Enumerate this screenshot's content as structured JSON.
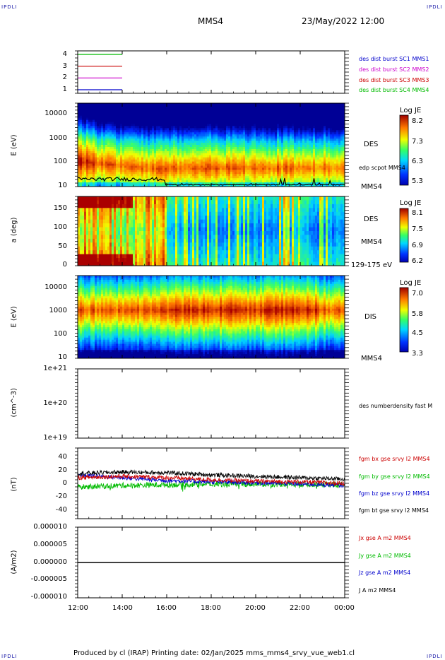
{
  "header": {
    "corner_tl": "IPDLI",
    "corner_tr": "IPDLI",
    "corner_bl": "IPDLI",
    "corner_br": "IPDLI",
    "title": "MMS4",
    "datetime": "23/May/2022 12:00"
  },
  "footer": {
    "text": "Produced by cl (IRAP)   Printing date: 02/Jan/2025   mms_mms4_srvy_vue_web1.cl"
  },
  "x_axis": {
    "ticks": [
      "12:00",
      "14:00",
      "16:00",
      "18:00",
      "20:00",
      "22:00",
      "00:00"
    ]
  },
  "panels": {
    "p1": {
      "ticks": [
        "4",
        "3",
        "2",
        "1"
      ],
      "legend": [
        {
          "text": "des dist burst SC1 MMS1",
          "color": "#0000cc"
        },
        {
          "text": "des dist burst SC2 MMS2",
          "color": "#cc00cc"
        },
        {
          "text": "des dist burst SC3 MMS3",
          "color": "#cc0000"
        },
        {
          "text": "des dist burst SC4 MMS4",
          "color": "#00bb00"
        }
      ],
      "lines": [
        {
          "level": 4,
          "color": "#00bb00"
        },
        {
          "level": 3,
          "color": "#cc0000"
        },
        {
          "level": 2,
          "color": "#cc00cc"
        },
        {
          "level": 1,
          "color": "#0000cc"
        }
      ]
    },
    "p2": {
      "ylabel": "E (eV)",
      "ticks": [
        "10000",
        "1000",
        "100",
        "10"
      ],
      "right_label": "DES",
      "overlay_label": "edp scpot MMS4",
      "bottom_label": "MMS4",
      "cb_title": "Log JE",
      "cb_ticks": [
        "8.2",
        "7.3",
        "6.3",
        "5.3"
      ]
    },
    "p3": {
      "ylabel": "a (deg)",
      "ticks": [
        "150",
        "100",
        "50",
        "0"
      ],
      "right_label": "DES",
      "sub_label": "MMS4",
      "bottom_label": "129-175 eV",
      "cb_title": "Log JE",
      "cb_ticks": [
        "8.1",
        "7.5",
        "6.9",
        "6.2"
      ]
    },
    "p4": {
      "ylabel": "E (eV)",
      "ticks": [
        "10000",
        "1000",
        "100",
        "10"
      ],
      "right_label": "DIS",
      "bottom_label": "MMS4",
      "cb_title": "Log JE",
      "cb_ticks": [
        "7.0",
        "5.8",
        "4.5",
        "3.3"
      ]
    },
    "p5": {
      "ylabel": "(cm^-3)",
      "ticks": [
        "1e+21",
        "1e+20",
        "1e+19"
      ],
      "legend": "des numberdensity fast M"
    },
    "p6": {
      "ylabel": "(nT)",
      "ticks": [
        "40",
        "20",
        "0",
        "-20",
        "-40"
      ],
      "legend": [
        {
          "text": "fgm bx gse srvy l2 MMS4",
          "color": "#cc0000"
        },
        {
          "text": "fgm by gse srvy l2 MMS4",
          "color": "#00bb00"
        },
        {
          "text": "fgm bz gse srvy l2 MMS4",
          "color": "#0000cc"
        },
        {
          "text": "fgm bt gse srvy l2 MMS4",
          "color": "#000000"
        }
      ]
    },
    "p7": {
      "ylabel": "(A/m2)",
      "ticks": [
        "0.000010",
        "0.000005",
        "0.000000",
        "-0.000005",
        "-0.000010"
      ],
      "legend": [
        {
          "text": "Jx gse A m2 MMS4",
          "color": "#cc0000"
        },
        {
          "text": "Jy gse A m2 MMS4",
          "color": "#00bb00"
        },
        {
          "text": "Jz gse A m2 MMS4",
          "color": "#0000cc"
        },
        {
          "text": "J A m2 MMS4",
          "color": "#000000"
        }
      ]
    }
  },
  "chart_data": [
    {
      "type": "line",
      "title": "",
      "x": [
        "12:00",
        "00:00"
      ],
      "series": [
        {
          "name": "des dist burst SC4 MMS4",
          "values": [
            4,
            4
          ],
          "x_end": "14:00"
        },
        {
          "name": "des dist burst SC3 MMS3",
          "values": [
            3,
            3
          ],
          "x_end": "14:00"
        },
        {
          "name": "des dist burst SC2 MMS2",
          "values": [
            2,
            2
          ],
          "x_end": "14:00"
        },
        {
          "name": "des dist burst SC1 MMS1",
          "values": [
            1,
            1
          ],
          "x_end": "14:00"
        }
      ],
      "ylim": [
        0.7,
        4.3
      ]
    },
    {
      "type": "heatmap",
      "ylabel": "E (eV)",
      "yscale": "log",
      "ylim": [
        10,
        30000
      ],
      "colorbar": "Log JE",
      "clim": [
        5.3,
        8.2
      ],
      "peak_energy_eV": {
        "12:00": 200,
        "15:00": 150,
        "16:00": 60,
        "22:00": 60,
        "00:00": 55
      },
      "overlay": "edp scpot MMS4"
    },
    {
      "type": "heatmap",
      "ylabel": "a (deg)",
      "ylim": [
        0,
        180
      ],
      "colorbar": "Log JE",
      "clim": [
        6.2,
        8.1
      ],
      "energy_band": "129-175 eV"
    },
    {
      "type": "heatmap",
      "ylabel": "E (eV)",
      "yscale": "log",
      "ylim": [
        10,
        30000
      ],
      "colorbar": "Log JE",
      "clim": [
        3.3,
        7.0
      ],
      "peak_energy_eV": {
        "12:00": 900,
        "18:00": 1000,
        "00:00": 900
      }
    },
    {
      "type": "line",
      "ylabel": "(cm^-3)",
      "yscale": "log",
      "ylim": [
        1e+19,
        1e+21
      ],
      "series": []
    },
    {
      "type": "line",
      "ylabel": "(nT)",
      "ylim": [
        -50,
        50
      ],
      "x": [
        "12:00",
        "14:00",
        "16:00",
        "18:00",
        "20:00",
        "22:00",
        "00:00"
      ],
      "series": [
        {
          "name": "fgm bt gse srvy l2 MMS4",
          "values": [
            14,
            16,
            15,
            12,
            10,
            8,
            6
          ]
        },
        {
          "name": "fgm bx gse srvy l2 MMS4",
          "values": [
            8,
            10,
            8,
            5,
            3,
            2,
            0
          ]
        },
        {
          "name": "fgm by gse srvy l2 MMS4",
          "values": [
            -5,
            -3,
            -2,
            -1,
            -1,
            -1,
            -2
          ]
        },
        {
          "name": "fgm bz gse srvy l2 MMS4",
          "values": [
            12,
            8,
            4,
            2,
            1,
            -1,
            -3
          ]
        }
      ]
    },
    {
      "type": "line",
      "ylabel": "(A/m2)",
      "ylim": [
        -1e-05,
        1e-05
      ],
      "x": [
        "12:00",
        "00:00"
      ],
      "series": [
        {
          "name": "J A m2 MMS4",
          "values": [
            0,
            0
          ]
        }
      ]
    }
  ]
}
